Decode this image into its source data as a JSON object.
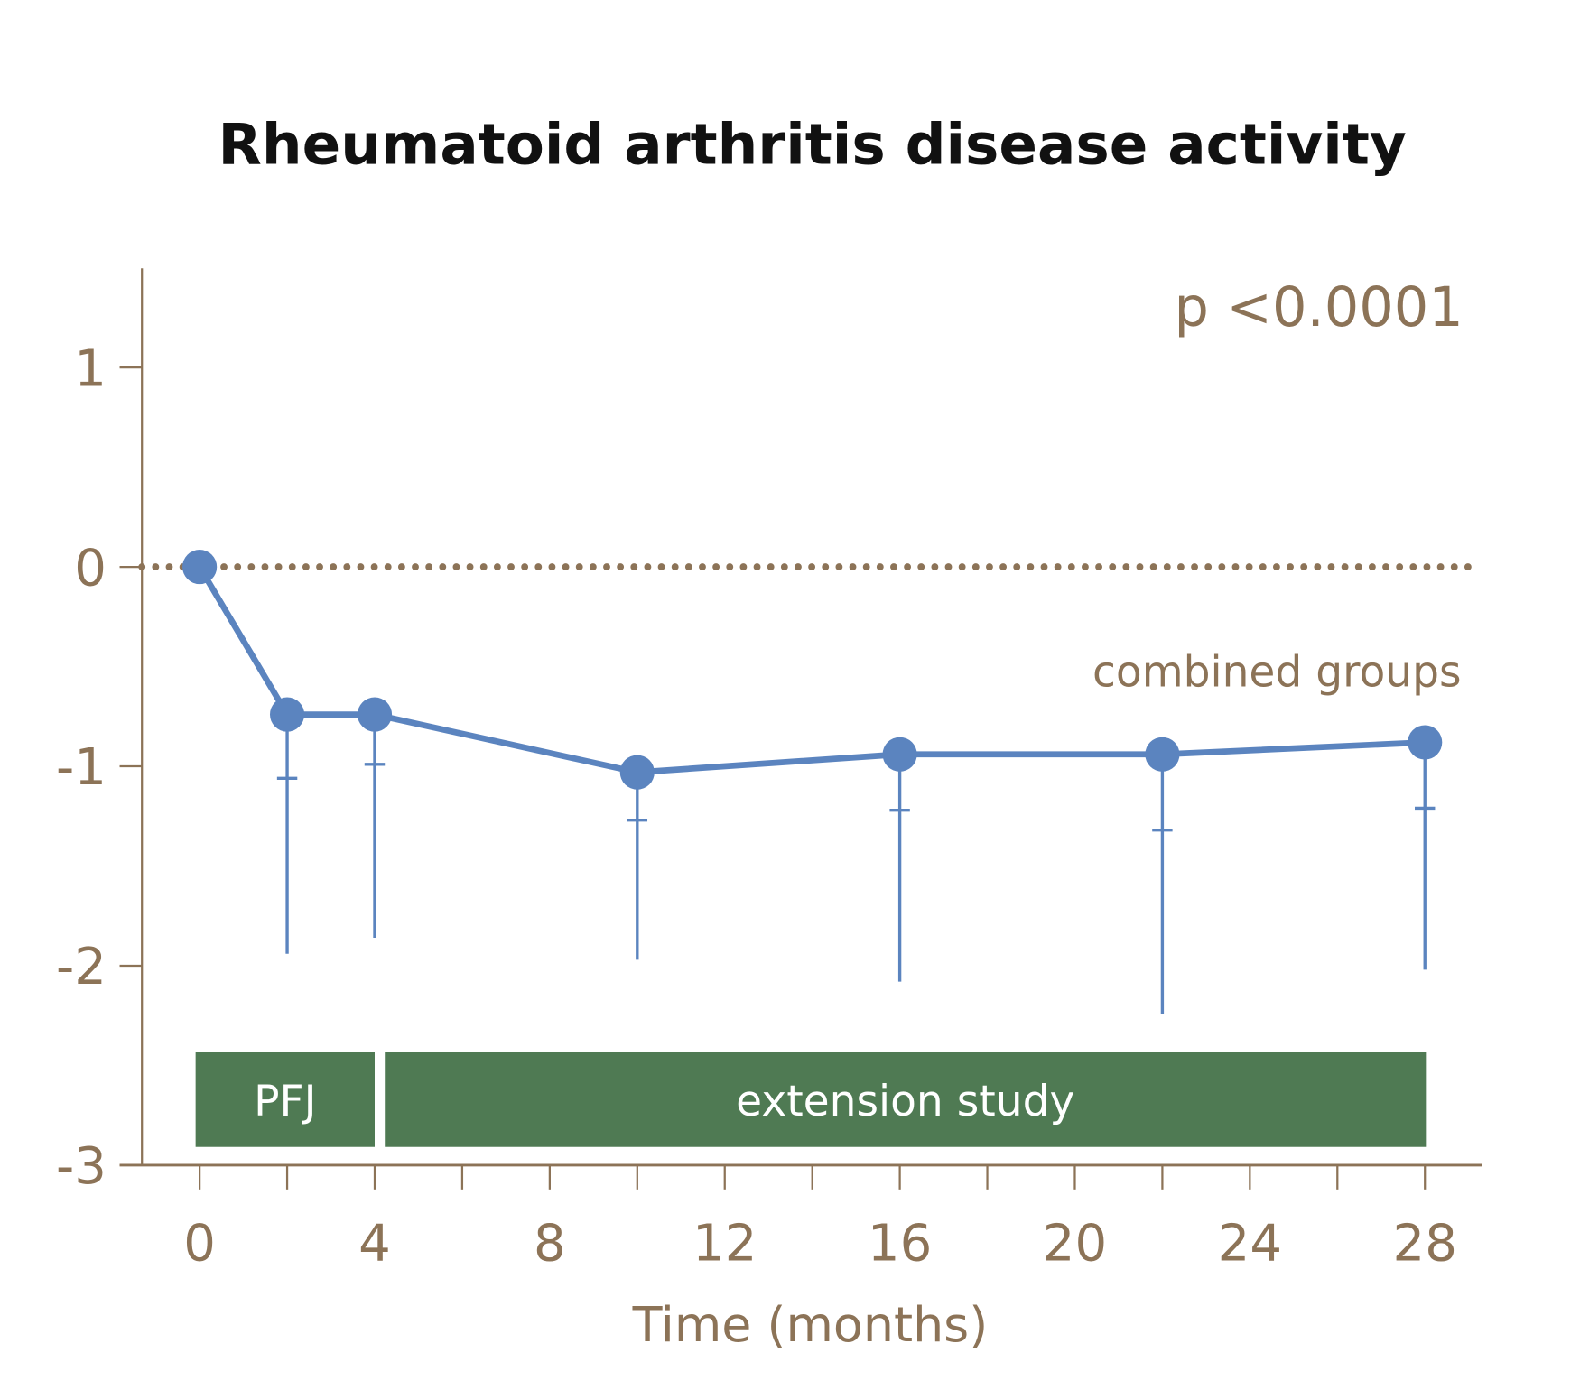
{
  "chart_data": {
    "type": "line",
    "title": "Rheumatoid arthritis disease activity",
    "xlabel": "Time (months)",
    "ylabel": "",
    "xlim": [
      0,
      28
    ],
    "ylim": [
      -3,
      1.5
    ],
    "x_ticks": [
      0,
      4,
      8,
      12,
      16,
      20,
      24,
      28
    ],
    "x_minor_step": 2,
    "y_ticks": [
      1,
      0,
      -1,
      -2,
      -3
    ],
    "reference_line": {
      "y": 0,
      "style": "dotted"
    },
    "series": [
      {
        "name": "combined groups",
        "color": "#5b84bf",
        "points": [
          {
            "x": 0,
            "y": 0
          },
          {
            "x": 2,
            "y": -0.74,
            "lower_tick": -1.06,
            "lower_end": -1.94
          },
          {
            "x": 4,
            "y": -0.74,
            "lower_tick": -0.99,
            "lower_end": -1.86
          },
          {
            "x": 10,
            "y": -1.03,
            "lower_tick": -1.27,
            "lower_end": -1.97
          },
          {
            "x": 16,
            "y": -0.94,
            "lower_tick": -1.22,
            "lower_end": -2.08
          },
          {
            "x": 22,
            "y": -0.94,
            "lower_tick": -1.32,
            "lower_end": -2.24
          },
          {
            "x": 28,
            "y": -0.88,
            "lower_tick": -1.21,
            "lower_end": -2.02
          }
        ]
      }
    ],
    "annotations": {
      "p_value": "p <0.0001",
      "series_label": "combined groups"
    },
    "bands": [
      {
        "label": "PFJ",
        "from": 0,
        "to": 4,
        "color": "#4f7a53"
      },
      {
        "label": "extension study",
        "from": 4,
        "to": 28,
        "color": "#4f7a53"
      }
    ],
    "axis_color": "#8c7357",
    "grid": false,
    "legend": "none"
  }
}
